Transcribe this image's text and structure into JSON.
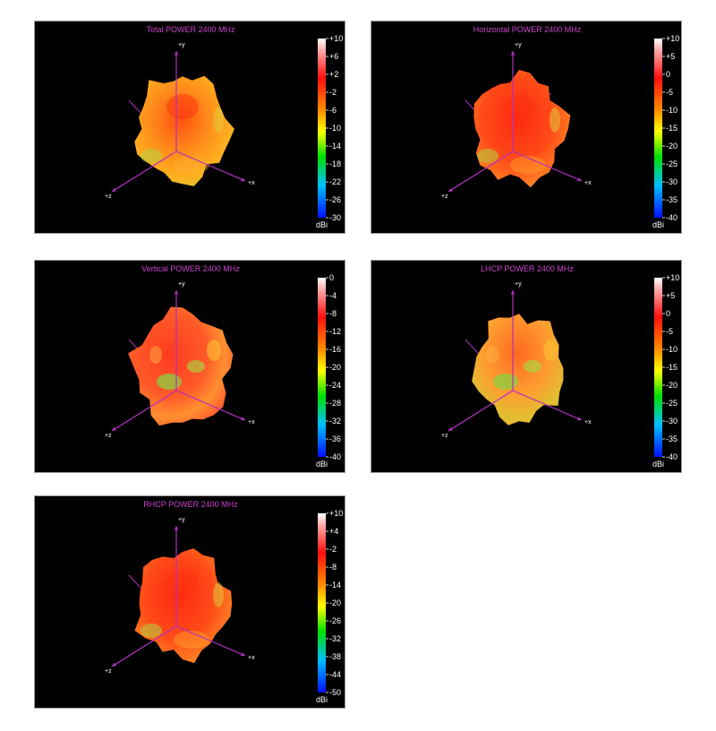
{
  "axis_labels": {
    "y": "+y",
    "x": "+x",
    "z": "+z"
  },
  "colors": {
    "title": "#cc44cc",
    "axis": "#b030c0",
    "label": "#ffffff",
    "background": "#000000",
    "border": "#9a9a9a"
  },
  "panels": [
    {
      "title": "Total POWER 2400  MHz",
      "unit": "dBi",
      "ticks": [
        "+10",
        "+6",
        "+2",
        "-2",
        "-6",
        "-10",
        "-14",
        "-18",
        "-22",
        "-26",
        "-30"
      ],
      "tint": "orange"
    },
    {
      "title": "Horizontal POWER 2400  MHz",
      "unit": "dBi",
      "ticks": [
        "+10",
        "+5",
        "0",
        "-5",
        "-10",
        "-15",
        "-20",
        "-25",
        "-30",
        "-35",
        "-40"
      ],
      "tint": "red"
    },
    {
      "title": "Vertical POWER 2400  MHz",
      "unit": "dBi",
      "ticks": [
        "0",
        "-4",
        "-8",
        "-12",
        "-16",
        "-20",
        "-24",
        "-28",
        "-32",
        "-36",
        "-40"
      ],
      "tint": "redgreen"
    },
    {
      "title": "LHCP POWER 2400  MHz",
      "unit": "dBi",
      "ticks": [
        "+10",
        "+5",
        "0",
        "-5",
        "-10",
        "-15",
        "-20",
        "-25",
        "-30",
        "-35",
        "-40"
      ],
      "tint": "orangegreen"
    },
    {
      "title": "RHCP POWER 2400  MHz",
      "unit": "dBi",
      "ticks": [
        "+10",
        "+4",
        "-2",
        "-8",
        "-14",
        "-20",
        "-26",
        "-32",
        "-38",
        "-44",
        "-50"
      ],
      "tint": "red"
    }
  ]
}
